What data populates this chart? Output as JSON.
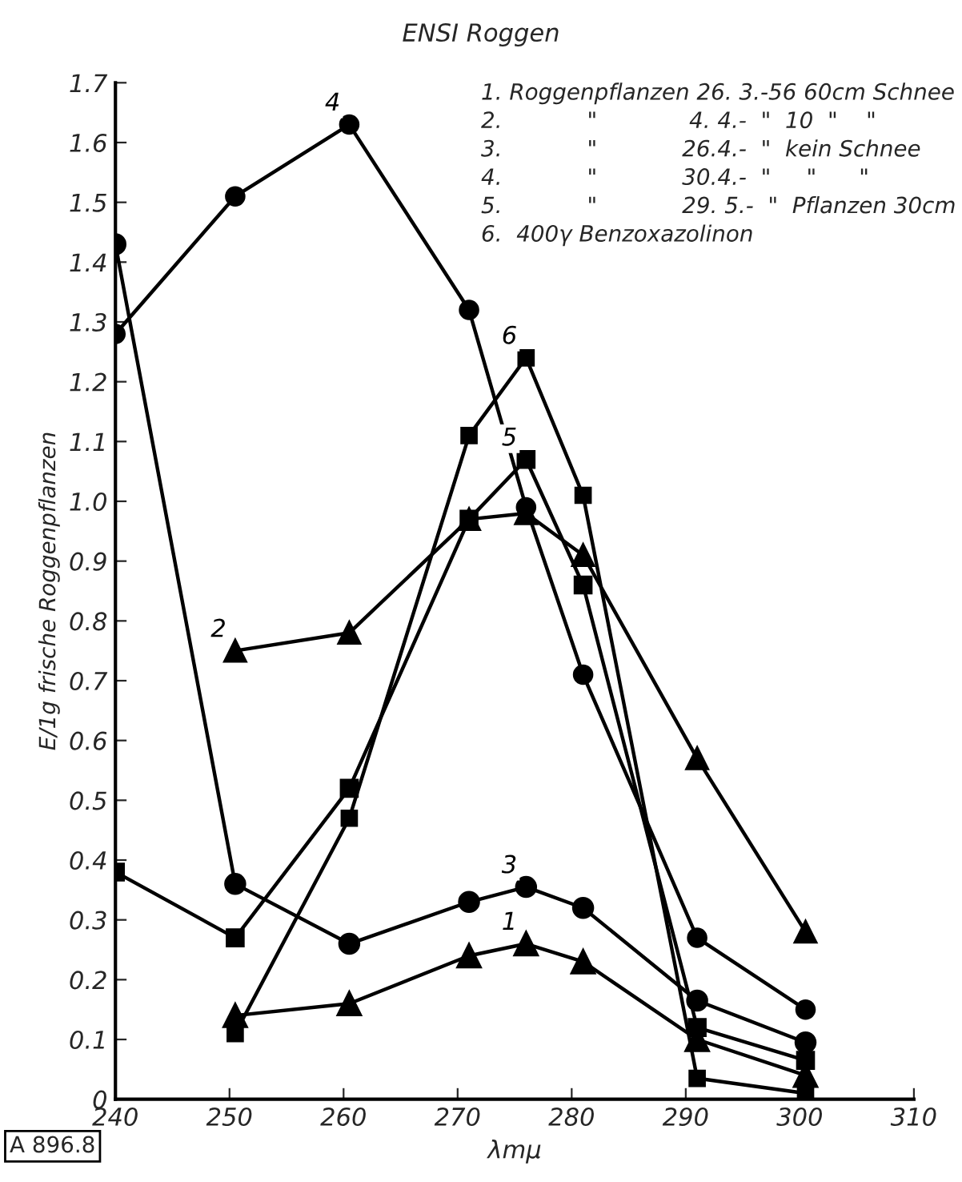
{
  "chart_data": {
    "type": "line",
    "title": "ENSI Roggen",
    "xlabel": "λmμ",
    "ylabel": "E/1g frische Roggenpflanzen",
    "xlim": [
      240,
      310
    ],
    "xticks": [
      240,
      250,
      260,
      270,
      280,
      290,
      300,
      310
    ],
    "ylim": [
      0,
      1.7
    ],
    "yticks": [
      0,
      0.1,
      0.2,
      0.3,
      0.4,
      0.5,
      0.6,
      0.7,
      0.8,
      0.9,
      {
        "value": 1.0,
        "label": "1.0"
      },
      1.1,
      1.2,
      1.3,
      1.4,
      1.5,
      1.6,
      1.7
    ],
    "grid": false,
    "legend": false,
    "line_style": "solid",
    "series": [
      {
        "name": "1",
        "color": "#000000",
        "marker": "triangle",
        "x": [
          250.5,
          260.5,
          271,
          276,
          281,
          291,
          300.5
        ],
        "values": [
          0.14,
          0.16,
          0.24,
          0.26,
          0.23,
          0.1,
          0.04
        ]
      },
      {
        "name": "2",
        "color": "#000000",
        "marker": "triangle",
        "x": [
          250.5,
          260.5,
          271,
          276,
          281,
          291,
          300.5
        ],
        "values": [
          0.75,
          0.78,
          0.97,
          0.98,
          0.91,
          0.57,
          0.28
        ]
      },
      {
        "name": "3",
        "color": "#000000",
        "marker": "circle",
        "x": [
          240,
          250.5,
          260.5,
          271,
          276,
          281,
          291,
          300.5
        ],
        "values": [
          1.43,
          0.36,
          0.26,
          0.33,
          0.355,
          0.32,
          0.165,
          0.095
        ]
      },
      {
        "name": "4",
        "color": "#000000",
        "marker": "circle",
        "x": [
          240,
          250.5,
          260.5,
          271,
          276,
          281,
          291,
          300.5
        ],
        "values": [
          1.28,
          1.51,
          1.63,
          1.32,
          0.99,
          0.71,
          0.27,
          0.15
        ]
      },
      {
        "name": "5",
        "color": "#000000",
        "marker": "square",
        "x": [
          240,
          250.5,
          260.5,
          271,
          276,
          281,
          291,
          300.5
        ],
        "values": [
          0.38,
          0.27,
          0.52,
          0.97,
          1.07,
          0.86,
          0.12,
          0.065
        ]
      },
      {
        "name": "6",
        "color": "#000000",
        "marker": "square",
        "x": [
          250.5,
          260.5,
          271,
          276,
          281,
          291,
          300.5
        ],
        "values": [
          0.11,
          0.47,
          1.11,
          1.24,
          1.01,
          0.035,
          0.01
        ]
      }
    ],
    "annotations": [
      "1. Roggenpflanzen 26. 3.-56 60cm Schnee",
      "2.            \"             4. 4.-  \"  10  \"    \"",
      "3.            \"            26.4.-  \"  kein Schnee",
      "4.            \"            30.4.-  \"     \"      \"",
      "5.            \"            29. 5.-  \"  Pflanzen 30cm",
      "6.  400γ Benzoxazolinon",
      "A 896.8"
    ]
  }
}
